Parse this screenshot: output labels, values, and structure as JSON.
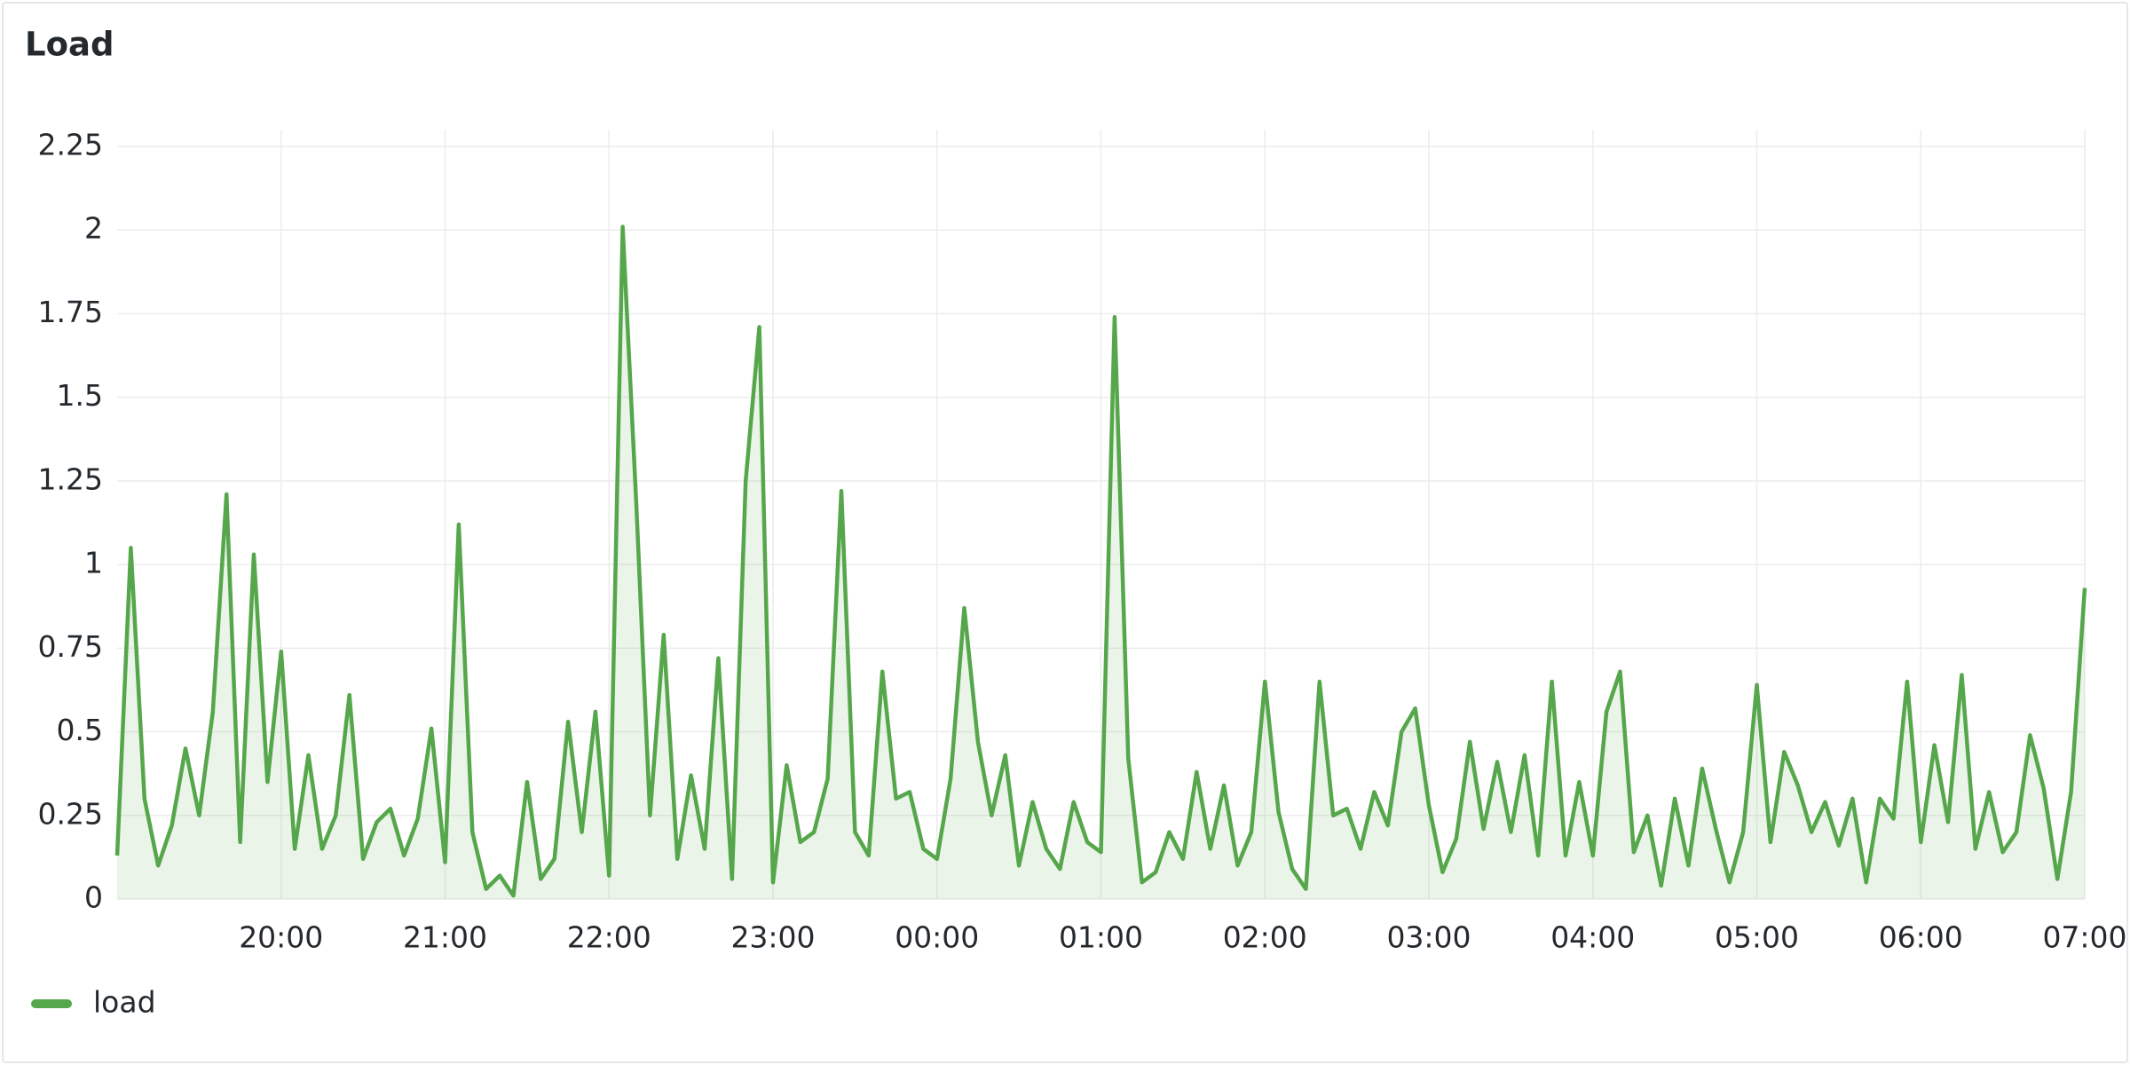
{
  "chart_data": {
    "type": "line",
    "title": "Load",
    "x": [
      0,
      5,
      10,
      15,
      20,
      25,
      30,
      35,
      40,
      45,
      50,
      55,
      60,
      65,
      70,
      75,
      80,
      85,
      90,
      95,
      100,
      105,
      110,
      115,
      120,
      125,
      130,
      135,
      140,
      145,
      150,
      155,
      160,
      165,
      170,
      175,
      180,
      185,
      190,
      195,
      200,
      205,
      210,
      215,
      220,
      225,
      230,
      235,
      240,
      245,
      250,
      255,
      260,
      265,
      270,
      275,
      280,
      285,
      290,
      295,
      300,
      305,
      310,
      315,
      320,
      325,
      330,
      335,
      340,
      345,
      350,
      355,
      360,
      365,
      370,
      375,
      380,
      385,
      390,
      395,
      400,
      405,
      410,
      415,
      420,
      425,
      430,
      435,
      440,
      445,
      450,
      455,
      460,
      465,
      470,
      475,
      480,
      485,
      490,
      495,
      500,
      505,
      510,
      515,
      520,
      525,
      530,
      535,
      540,
      545,
      550,
      555,
      560,
      565,
      570,
      575,
      580,
      585,
      590,
      595,
      600,
      605,
      610,
      615,
      620,
      625,
      630,
      635,
      640,
      645,
      650,
      655,
      660,
      665,
      670,
      675,
      680,
      685,
      690,
      695,
      700,
      705,
      710,
      715,
      720
    ],
    "series": [
      {
        "name": "load",
        "color": "#56a64b",
        "values": [
          0.13,
          1.05,
          0.3,
          0.1,
          0.22,
          0.45,
          0.25,
          0.56,
          1.21,
          0.17,
          1.03,
          0.35,
          0.74,
          0.15,
          0.43,
          0.15,
          0.25,
          0.61,
          0.12,
          0.23,
          0.27,
          0.13,
          0.24,
          0.51,
          0.11,
          1.12,
          0.2,
          0.03,
          0.07,
          0.01,
          0.35,
          0.06,
          0.12,
          0.53,
          0.2,
          0.56,
          0.07,
          2.01,
          1.18,
          0.25,
          0.79,
          0.12,
          0.37,
          0.15,
          0.72,
          0.06,
          1.25,
          1.71,
          0.05,
          0.4,
          0.17,
          0.2,
          0.36,
          1.22,
          0.2,
          0.13,
          0.68,
          0.3,
          0.32,
          0.15,
          0.12,
          0.36,
          0.87,
          0.47,
          0.25,
          0.43,
          0.1,
          0.29,
          0.15,
          0.09,
          0.29,
          0.17,
          0.14,
          1.74,
          0.42,
          0.05,
          0.08,
          0.2,
          0.12,
          0.38,
          0.15,
          0.34,
          0.1,
          0.2,
          0.65,
          0.26,
          0.09,
          0.03,
          0.65,
          0.25,
          0.27,
          0.15,
          0.32,
          0.22,
          0.5,
          0.57,
          0.28,
          0.08,
          0.18,
          0.47,
          0.21,
          0.41,
          0.2,
          0.43,
          0.13,
          0.65,
          0.13,
          0.35,
          0.13,
          0.56,
          0.68,
          0.14,
          0.25,
          0.04,
          0.3,
          0.1,
          0.39,
          0.21,
          0.05,
          0.2,
          0.64,
          0.17,
          0.44,
          0.34,
          0.2,
          0.29,
          0.16,
          0.3,
          0.05,
          0.3,
          0.24,
          0.65,
          0.17,
          0.46,
          0.23,
          0.67,
          0.15,
          0.32,
          0.14,
          0.2,
          0.49,
          0.33,
          0.06,
          0.32,
          0.93
        ]
      }
    ],
    "xlim": [
      0,
      720
    ],
    "xticks": [
      {
        "value": 60,
        "label": "20:00"
      },
      {
        "value": 120,
        "label": "21:00"
      },
      {
        "value": 180,
        "label": "22:00"
      },
      {
        "value": 240,
        "label": "23:00"
      },
      {
        "value": 300,
        "label": "00:00"
      },
      {
        "value": 360,
        "label": "01:00"
      },
      {
        "value": 420,
        "label": "02:00"
      },
      {
        "value": 480,
        "label": "03:00"
      },
      {
        "value": 540,
        "label": "04:00"
      },
      {
        "value": 600,
        "label": "05:00"
      },
      {
        "value": 660,
        "label": "06:00"
      },
      {
        "value": 720,
        "label": "07:00"
      }
    ],
    "ylim": [
      0,
      2.25
    ],
    "yticks": [
      0,
      0.25,
      0.5,
      0.75,
      1,
      1.25,
      1.5,
      1.75,
      2,
      2.25
    ],
    "grid": true,
    "fill": true,
    "legend": "bottom-left"
  }
}
